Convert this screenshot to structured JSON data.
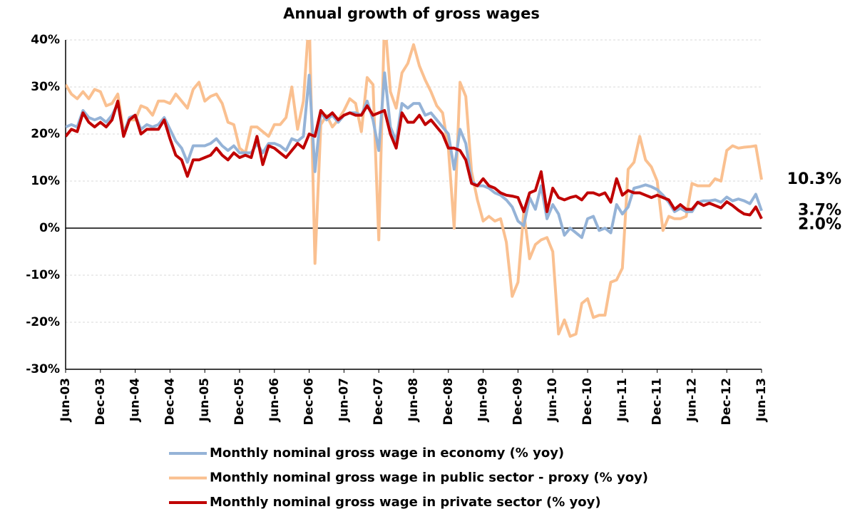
{
  "chart_data": {
    "type": "line",
    "title": "Annual growth of gross wages",
    "categories": [
      "Jun-03",
      null,
      null,
      null,
      null,
      null,
      "Dec-03",
      null,
      null,
      null,
      null,
      null,
      "Jun-04",
      null,
      null,
      null,
      null,
      null,
      "Dec-04",
      null,
      null,
      null,
      null,
      null,
      "Jun-05",
      null,
      null,
      null,
      null,
      null,
      "Dec-05",
      null,
      null,
      null,
      null,
      null,
      "Jun-06",
      null,
      null,
      null,
      null,
      null,
      "Dec-06",
      null,
      null,
      null,
      null,
      null,
      "Jun-07",
      null,
      null,
      null,
      null,
      null,
      "Dec-07",
      null,
      null,
      null,
      null,
      null,
      "Jun-08",
      null,
      null,
      null,
      null,
      null,
      "Dec-08",
      null,
      null,
      null,
      null,
      null,
      "Jun-09",
      null,
      null,
      null,
      null,
      null,
      "Dec-09",
      null,
      null,
      null,
      null,
      null,
      "Jun-10",
      null,
      null,
      null,
      null,
      null,
      "Dec-10",
      null,
      null,
      null,
      null,
      null,
      "Jun-11",
      null,
      null,
      null,
      null,
      null,
      "Dec-11",
      null,
      null,
      null,
      null,
      null,
      "Jun-12",
      null,
      null,
      null,
      null,
      null,
      "Dec-12",
      null,
      null,
      null,
      null,
      null,
      "Jun-13"
    ],
    "series": [
      {
        "name": "Monthly nominal gross wage in economy (% yoy)",
        "color": "#95b3d7",
        "end_label": "3.7%",
        "values": [
          21.5,
          22,
          21.5,
          25,
          23.5,
          23,
          23.5,
          22.5,
          24,
          26.5,
          20,
          23.5,
          24,
          21,
          22,
          21.5,
          22,
          23.5,
          21,
          18.5,
          17,
          14,
          17.5,
          17.5,
          17.5,
          18,
          19,
          17.5,
          16.5,
          17.5,
          16,
          16,
          16,
          18,
          16,
          18,
          18,
          17.5,
          16.5,
          19,
          18.5,
          19.5,
          32.5,
          12,
          24.5,
          23,
          24,
          22.5,
          24,
          24.5,
          24.5,
          24,
          27,
          23,
          16.5,
          33,
          21.5,
          18.5,
          26.5,
          25.5,
          26.5,
          26.5,
          24,
          24.5,
          23,
          21.5,
          20,
          12.5,
          21,
          18,
          10,
          9,
          9,
          8.5,
          7.5,
          7,
          6,
          4.5,
          1.5,
          0.5,
          6.5,
          4,
          9,
          2,
          5,
          3,
          -1.5,
          0,
          -1,
          -2,
          2,
          2.5,
          -0.5,
          0,
          -1,
          5,
          3,
          4.5,
          8.5,
          8.8,
          9.2,
          8.8,
          8.2,
          7,
          5.5,
          3.5,
          4.2,
          3.5,
          3.5,
          5.5,
          5.8,
          5.8,
          6,
          5.5,
          6.6,
          5.8,
          6.2,
          5.8,
          5.2,
          7.2,
          3.7
        ]
      },
      {
        "name": "Monthly nominal gross wage in public sector - proxy (% yoy)",
        "color": "#fac090",
        "end_label": "10.3%",
        "label_color": "#ffc000",
        "values": [
          30.5,
          28.5,
          27.5,
          29,
          27.5,
          29.5,
          29,
          26,
          26.5,
          28.5,
          20.5,
          23,
          23,
          26,
          25.5,
          24,
          27,
          27,
          26.5,
          28.5,
          27,
          25.5,
          29.5,
          31,
          27,
          28,
          28.5,
          26.5,
          22.5,
          22,
          17,
          16,
          21.5,
          21.5,
          20.5,
          19.5,
          22,
          22,
          23.5,
          30,
          21,
          27,
          45,
          -7.5,
          22,
          24,
          21.5,
          23,
          25,
          27.5,
          26.5,
          20.5,
          32,
          30.5,
          -2.5,
          45,
          29,
          25.5,
          33,
          35,
          39,
          34.5,
          31.5,
          29,
          26,
          24.5,
          17,
          0,
          31,
          28,
          12,
          6,
          1.5,
          2.5,
          1.5,
          2,
          -3,
          -14.5,
          -11.5,
          3.5,
          -6.5,
          -3.5,
          -2.5,
          -2,
          -5,
          -22.5,
          -19.5,
          -23,
          -22.5,
          -16,
          -15,
          -19,
          -18.5,
          -18.5,
          -11.5,
          -11,
          -8.5,
          12.5,
          14,
          19.5,
          14.5,
          13,
          10,
          -0.5,
          2.5,
          2,
          2,
          2.5,
          9.5,
          9,
          9,
          9,
          10.5,
          10,
          16.5,
          17.5,
          17,
          17.2,
          17.3,
          17.5,
          10.3
        ]
      },
      {
        "name": "Monthly nominal gross wage in private sector (% yoy)",
        "color": "#c00000",
        "end_label": "2.0%",
        "values": [
          19.5,
          21,
          20.5,
          24.5,
          22.5,
          21.5,
          22.5,
          21.5,
          23,
          27,
          19.5,
          23,
          24,
          20,
          21,
          21,
          21,
          23,
          19,
          15.5,
          14.5,
          11,
          14.5,
          14.5,
          15,
          15.5,
          17,
          15.5,
          14.5,
          16,
          15,
          15.5,
          15,
          19.5,
          13.5,
          17.5,
          17,
          16,
          15,
          16.5,
          18,
          17,
          20,
          19.5,
          25,
          23.5,
          24.5,
          23,
          24,
          24.5,
          24,
          24,
          26,
          24,
          24.5,
          25,
          20,
          17,
          24.5,
          22.5,
          22.5,
          24,
          22,
          23,
          21.5,
          20,
          17,
          17,
          16.5,
          14.5,
          9.5,
          9,
          10.5,
          9,
          8.5,
          7.5,
          7,
          6.8,
          6.5,
          3.5,
          7.5,
          8,
          12,
          3.5,
          8.5,
          6.5,
          6,
          6.5,
          6.8,
          6,
          7.5,
          7.5,
          7,
          7.5,
          5.5,
          10.5,
          7,
          8,
          7.5,
          7.5,
          7,
          6.5,
          7,
          6.5,
          6,
          4,
          5,
          4,
          4,
          5.5,
          4.8,
          5.3,
          4.8,
          4.3,
          5.6,
          4.8,
          3.8,
          3,
          2.8,
          4.5,
          2.0
        ]
      }
    ],
    "ylim": [
      -30,
      40
    ],
    "yticks": [
      {
        "value": -30,
        "label": "-30%"
      },
      {
        "value": -20,
        "label": "-20%"
      },
      {
        "value": -10,
        "label": "-10%"
      },
      {
        "value": 0,
        "label": "0%"
      },
      {
        "value": 10,
        "label": "10%"
      },
      {
        "value": 20,
        "label": "20%"
      },
      {
        "value": 30,
        "label": "30%"
      },
      {
        "value": 40,
        "label": "40%"
      }
    ],
    "grid": true,
    "legend": "bottom"
  }
}
